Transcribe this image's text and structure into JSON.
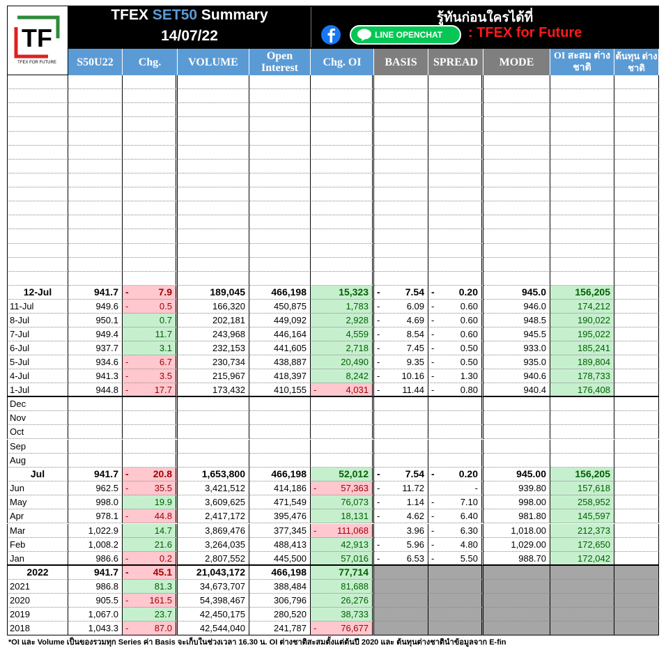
{
  "header": {
    "logo": {
      "mark": "TF",
      "tagline": "TFEX FOR FUTURE"
    },
    "title": {
      "prefix": "TFEX",
      "highlight": "SET50",
      "suffix": "Summary"
    },
    "date": "14/07/22",
    "promo": "รู้ทันก่อนใครได้ที่",
    "line_badge": "LINE OPENCHAT",
    "channel": ": TFEX for Future"
  },
  "table": {
    "columns": [
      "S50U22",
      "Chg.",
      "VOLUME",
      "Open Interest",
      "Chg. OI",
      "BASIS",
      "SPREAD",
      "MODE",
      "OI สะสม ต่างชาติ",
      "ต้นทุน ต่างชาติ"
    ],
    "sections": [
      {
        "rows": [
          {
            "emphasis": true,
            "cells": [
              "12-Jul",
              "941.7",
              [
                "-",
                "7.9"
              ],
              "189,045",
              "466,198",
              "15,323",
              [
                "-",
                "7.54"
              ],
              [
                "-",
                "0.20"
              ],
              "945.0",
              "156,205"
            ]
          },
          {
            "cells": [
              "11-Jul",
              "949.6",
              [
                "-",
                "0.5"
              ],
              "166,320",
              "450,875",
              "1,783",
              [
                "-",
                "6.09"
              ],
              [
                "-",
                "0.60"
              ],
              "946.0",
              "174,212"
            ]
          },
          {
            "cells": [
              "8-Jul",
              "950.1",
              "0.7",
              "202,181",
              "449,092",
              "2,928",
              [
                "-",
                "4.69"
              ],
              [
                "-",
                "0.60"
              ],
              "948.5",
              "190,022"
            ]
          },
          {
            "cells": [
              "7-Jul",
              "949.4",
              "11.7",
              "243,968",
              "446,164",
              "4,559",
              [
                "-",
                "8.54"
              ],
              [
                "-",
                "0.60"
              ],
              "945.5",
              "195,022"
            ]
          },
          {
            "cells": [
              "6-Jul",
              "937.7",
              "3.1",
              "232,153",
              "441,605",
              "2,718",
              [
                "-",
                "7.45"
              ],
              [
                "-",
                "0.50"
              ],
              "933.0",
              "185,241"
            ]
          },
          {
            "cells": [
              "5-Jul",
              "934.6",
              [
                "-",
                "6.7"
              ],
              "230,734",
              "438,887",
              "20,490",
              [
                "-",
                "9.35"
              ],
              [
                "-",
                "0.50"
              ],
              "935.0",
              "189,804"
            ]
          },
          {
            "cells": [
              "4-Jul",
              "941.3",
              [
                "-",
                "3.5"
              ],
              "215,967",
              "418,397",
              "8,242",
              [
                "-",
                "10.16"
              ],
              [
                "-",
                "1.30"
              ],
              "940.6",
              "178,733"
            ]
          },
          {
            "cells": [
              "1-Jul",
              "944.8",
              [
                "-",
                "17.7"
              ],
              "173,432",
              "410,155",
              [
                "-",
                "4,031"
              ],
              [
                "-",
                "11.44"
              ],
              [
                "-",
                "0.80"
              ],
              "940.4",
              "176,408"
            ]
          }
        ]
      },
      {
        "rows": [
          {
            "cells": [
              "Dec"
            ]
          },
          {
            "cells": [
              "Nov"
            ]
          },
          {
            "cells": [
              "Oct"
            ]
          },
          {
            "cells": [
              "Sep"
            ]
          },
          {
            "cells": [
              "Aug"
            ]
          },
          {
            "emphasis": true,
            "cells": [
              "Jul",
              "941.7",
              [
                "-",
                "20.8"
              ],
              "1,653,800",
              "466,198",
              "52,012",
              [
                "-",
                "7.54"
              ],
              [
                "-",
                "0.20"
              ],
              "945.00",
              "156,205"
            ]
          },
          {
            "cells": [
              "Jun",
              "962.5",
              [
                "-",
                "35.5"
              ],
              "3,421,512",
              "414,186",
              [
                "-",
                "57,363"
              ],
              [
                "-",
                "11.72"
              ],
              "-",
              "939.80",
              "157,618"
            ]
          },
          {
            "cells": [
              "May",
              "998.0",
              "19.9",
              "3,609,625",
              "471,549",
              "76,073",
              [
                "-",
                "1.14"
              ],
              [
                "-",
                "7.10"
              ],
              "998.00",
              "258,952"
            ]
          },
          {
            "cells": [
              "Apr",
              "978.1",
              [
                "-",
                "44.8"
              ],
              "2,417,172",
              "395,476",
              "18,131",
              [
                "-",
                "4.62"
              ],
              [
                "-",
                "6.40"
              ],
              "981.80",
              "145,597"
            ]
          },
          {
            "cells": [
              "Mar",
              "1,022.9",
              "14.7",
              "3,869,476",
              "377,345",
              [
                "-",
                "111,068"
              ],
              "3.96",
              [
                "-",
                "6.30"
              ],
              "1,018.00",
              "212,373"
            ]
          },
          {
            "cells": [
              "Feb",
              "1,008.2",
              "21.6",
              "3,264,035",
              "488,413",
              "42,913",
              [
                "-",
                "5.96"
              ],
              [
                "-",
                "4.80"
              ],
              "1,029.00",
              "172,650"
            ]
          },
          {
            "cells": [
              "Jan",
              "986.6",
              [
                "-",
                "0.2"
              ],
              "2,807,552",
              "445,500",
              "57,016",
              [
                "-",
                "6.53"
              ],
              [
                "-",
                "5.50"
              ],
              "988.70",
              "172,042"
            ]
          }
        ]
      },
      {
        "shaded": true,
        "rows": [
          {
            "emphasis": true,
            "cells": [
              "2022",
              "941.7",
              [
                "-",
                "45.1"
              ],
              "21,043,172",
              "466,198",
              "77,714"
            ]
          },
          {
            "cells": [
              "2021",
              "986.8",
              "81.3",
              "34,673,707",
              "388,484",
              "81,688"
            ]
          },
          {
            "cells": [
              "2020",
              "905.5",
              [
                "-",
                "161.5"
              ],
              "54,398,467",
              "306,796",
              "26,276"
            ]
          },
          {
            "cells": [
              "2019",
              "1,067.0",
              "23.7",
              "42,450,175",
              "280,520",
              "38,733"
            ]
          },
          {
            "cells": [
              "2018",
              "1,043.3",
              [
                "-",
                "87.0"
              ],
              "42,544,040",
              "241,787",
              [
                "-",
                "76,677"
              ]
            ]
          }
        ]
      }
    ]
  },
  "footnote": "*OI และ Volume เป็นของรวมทุก Series ค่า Basis จะเก็บในช่วงเวลา 16.30 น. OI ต่างชาติสะสมตั้งแต่ต้นปี 2020 และ ต้นทุนต่างชาตินำข้อมูลจาก E-fin"
}
